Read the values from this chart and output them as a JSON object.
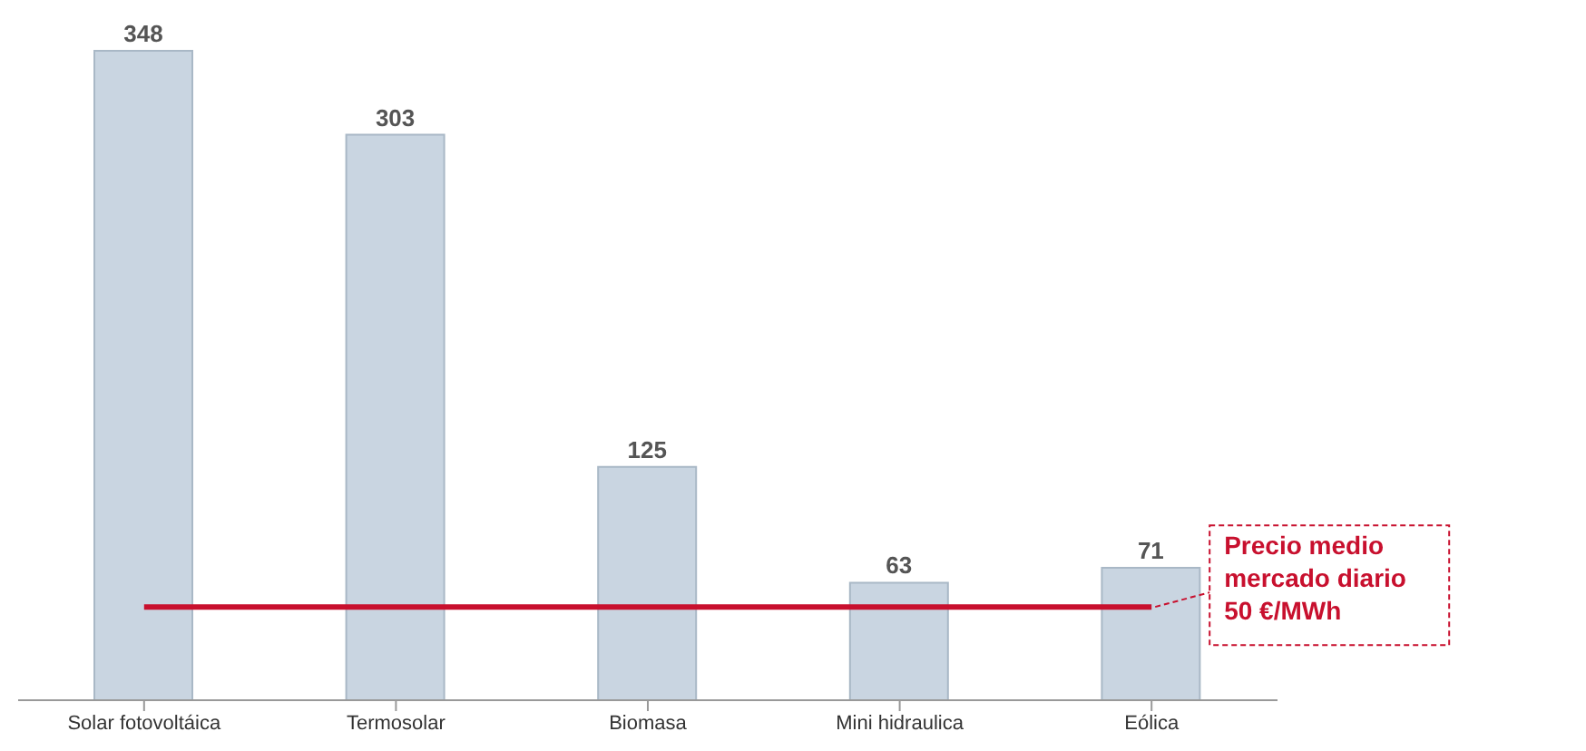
{
  "chart_data": {
    "type": "bar",
    "categories": [
      "Solar fotovoltáica",
      "Termosolar",
      "Biomasa",
      "Mini hidraulica",
      "Eólica"
    ],
    "values": [
      348,
      303,
      125,
      63,
      71
    ],
    "color": "#c9d5e1",
    "data_labels": true,
    "grid": false,
    "legend": false,
    "ref_lines": [
      {
        "axis": "y",
        "value": 50,
        "label": "Precio medio mercado diario 50 €/MWh",
        "color": "#c8102e",
        "line_style": "solid"
      }
    ]
  }
}
